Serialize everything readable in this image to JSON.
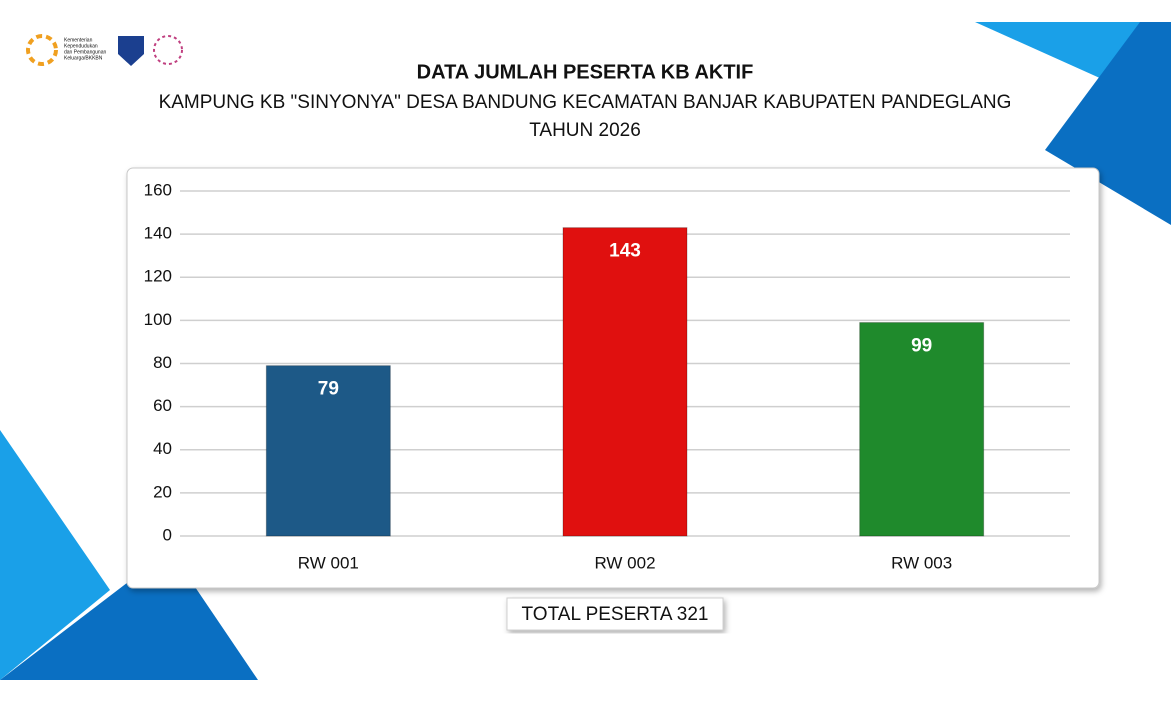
{
  "logo_text": [
    "Kementerian",
    "Kependudukan",
    "dan Pembangunan",
    "Keluarga/BKKBN"
  ],
  "chart_data": {
    "type": "bar",
    "title": "DATA JUMLAH PESERTA KB AKTIF",
    "subtitle": [
      "KAMPUNG KB \"SINYONYA\" DESA BANDUNG KECAMATAN BANJAR KABUPATEN PANDEGLANG",
      "TAHUN 2026"
    ],
    "categories": [
      "RW 001",
      "RW 002",
      "RW 003"
    ],
    "values": [
      79,
      143,
      99
    ],
    "colors": [
      "#1d5987",
      "#e0100f",
      "#1f8a2c"
    ],
    "ylim": [
      0,
      160
    ],
    "yticks": [
      0,
      20,
      40,
      60,
      80,
      100,
      120,
      140,
      160
    ],
    "grid": true,
    "footer": "TOTAL PESERTA 321"
  }
}
